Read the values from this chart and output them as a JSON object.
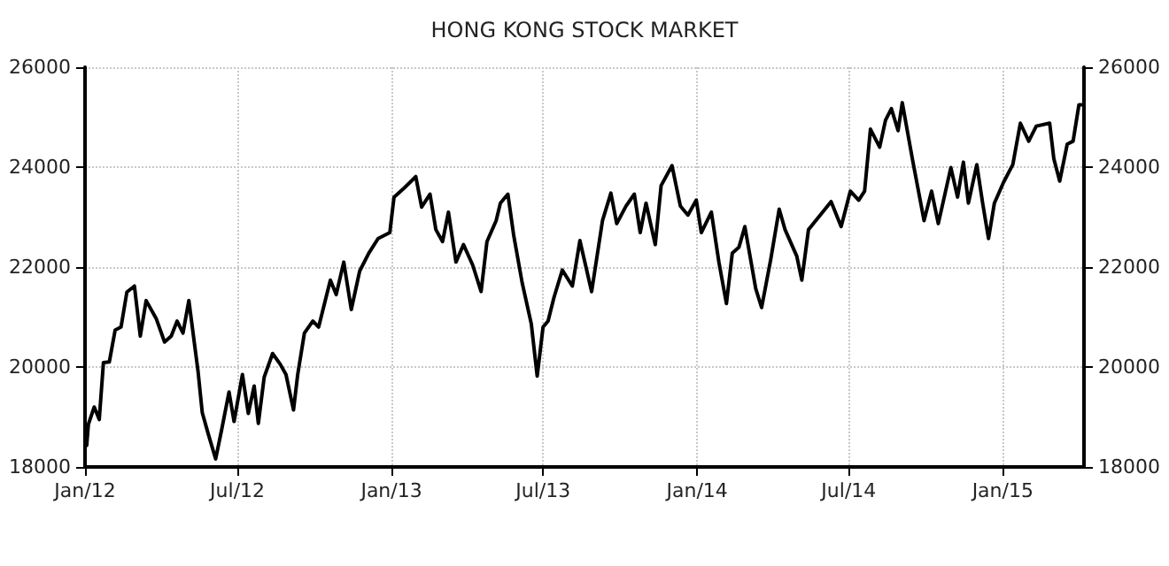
{
  "chart_data": {
    "type": "line",
    "title": "HONG KONG STOCK MARKET",
    "x": [
      "2012-01-03",
      "2012-01-05",
      "2012-01-12",
      "2012-01-18",
      "2012-01-23",
      "2012-01-30",
      "2012-02-06",
      "2012-02-13",
      "2012-02-20",
      "2012-02-29",
      "2012-03-07",
      "2012-03-14",
      "2012-03-26",
      "2012-04-05",
      "2012-04-13",
      "2012-04-20",
      "2012-04-27",
      "2012-05-04",
      "2012-05-15",
      "2012-05-20",
      "2012-05-27",
      "2012-06-05",
      "2012-06-12",
      "2012-06-21",
      "2012-06-27",
      "2012-07-07",
      "2012-07-14",
      "2012-07-21",
      "2012-07-26",
      "2012-08-02",
      "2012-08-12",
      "2012-08-21",
      "2012-08-28",
      "2012-09-06",
      "2012-09-11",
      "2012-09-19",
      "2012-09-29",
      "2012-10-06",
      "2012-10-20",
      "2012-10-27",
      "2012-11-05",
      "2012-11-14",
      "2012-11-24",
      "2012-12-05",
      "2012-12-16",
      "2012-12-30",
      "2013-01-04",
      "2013-01-16",
      "2013-01-30",
      "2013-02-06",
      "2013-02-16",
      "2013-02-23",
      "2013-03-03",
      "2013-03-10",
      "2013-03-19",
      "2013-03-28",
      "2013-04-08",
      "2013-04-18",
      "2013-04-25",
      "2013-05-06",
      "2013-05-11",
      "2013-05-20",
      "2013-05-27",
      "2013-06-06",
      "2013-06-17",
      "2013-06-24",
      "2013-07-01",
      "2013-07-07",
      "2013-07-14",
      "2013-07-24",
      "2013-08-05",
      "2013-08-14",
      "2013-08-28",
      "2013-09-10",
      "2013-09-20",
      "2013-09-27",
      "2013-10-08",
      "2013-10-18",
      "2013-10-25",
      "2013-11-01",
      "2013-11-12",
      "2013-11-19",
      "2013-12-02",
      "2013-12-12",
      "2013-12-21",
      "2013-12-31",
      "2014-01-06",
      "2014-01-18",
      "2014-01-27",
      "2014-02-05",
      "2014-02-12",
      "2014-02-20",
      "2014-02-27",
      "2014-03-12",
      "2014-03-19",
      "2014-03-30",
      "2014-04-09",
      "2014-04-16",
      "2014-04-30",
      "2014-05-06",
      "2014-05-14",
      "2014-05-28",
      "2014-06-10",
      "2014-06-22",
      "2014-07-03",
      "2014-07-13",
      "2014-07-20",
      "2014-07-27",
      "2014-08-07",
      "2014-08-14",
      "2014-08-21",
      "2014-08-29",
      "2014-09-03",
      "2014-09-15",
      "2014-09-29",
      "2014-10-08",
      "2014-10-16",
      "2014-10-31",
      "2014-11-08",
      "2014-11-15",
      "2014-11-21",
      "2014-12-01",
      "2014-12-08",
      "2014-12-15",
      "2014-12-22",
      "2015-01-02",
      "2015-01-13",
      "2015-01-22",
      "2015-02-01",
      "2015-02-10",
      "2015-02-26",
      "2015-03-03",
      "2015-03-10",
      "2015-03-19",
      "2015-03-26",
      "2015-04-02",
      "2015-04-05"
    ],
    "series": [
      {
        "color": "#000000",
        "values": [
          18430,
          18850,
          19200,
          18950,
          20090,
          20100,
          20740,
          20800,
          21500,
          21620,
          20620,
          21330,
          20970,
          20500,
          20620,
          20920,
          20680,
          21330,
          19910,
          19090,
          18670,
          18160,
          18730,
          19500,
          18910,
          19850,
          19070,
          19620,
          18870,
          19800,
          20270,
          20060,
          19850,
          19140,
          19850,
          20680,
          20920,
          20800,
          21740,
          21450,
          22100,
          21150,
          21920,
          22280,
          22570,
          22690,
          23400,
          23580,
          23810,
          23200,
          23460,
          22750,
          22510,
          23100,
          22100,
          22450,
          22040,
          21510,
          22510,
          22930,
          23280,
          23460,
          22630,
          21690,
          20860,
          19820,
          20800,
          20920,
          21390,
          21940,
          21620,
          22530,
          21510,
          22930,
          23480,
          22870,
          23220,
          23460,
          22690,
          23280,
          22450,
          23630,
          24030,
          23220,
          23040,
          23340,
          22690,
          23100,
          22100,
          21270,
          22280,
          22400,
          22810,
          21570,
          21190,
          22160,
          23160,
          22750,
          22220,
          21740,
          22750,
          23040,
          23310,
          22810,
          23520,
          23340,
          23520,
          24760,
          24400,
          24940,
          25170,
          24730,
          25290,
          24170,
          22930,
          23520,
          22870,
          23990,
          23400,
          24100,
          23280,
          24050,
          23280,
          22570,
          23280,
          23700,
          24050,
          24880,
          24520,
          24820,
          24880,
          24170,
          23720,
          24460,
          24520,
          25250,
          25250
        ]
      }
    ],
    "xlim": [
      "2012-01-01",
      "2015-04-08"
    ],
    "xticks": [
      {
        "value": "2012-01-01",
        "label": "Jan/12"
      },
      {
        "value": "2012-07-01",
        "label": "Jul/12"
      },
      {
        "value": "2013-01-01",
        "label": "Jan/13"
      },
      {
        "value": "2013-07-01",
        "label": "Jul/13"
      },
      {
        "value": "2014-01-01",
        "label": "Jan/14"
      },
      {
        "value": "2014-07-01",
        "label": "Jul/14"
      },
      {
        "value": "2015-01-01",
        "label": "Jan/15"
      }
    ],
    "ylim": [
      18000,
      26000
    ],
    "yticks": [
      18000,
      20000,
      22000,
      24000,
      26000
    ],
    "y2lim": [
      18000,
      26000
    ],
    "y2ticks": [
      18000,
      20000,
      22000,
      24000,
      26000
    ],
    "grid": true,
    "marker": "none",
    "line_style": "solid"
  }
}
